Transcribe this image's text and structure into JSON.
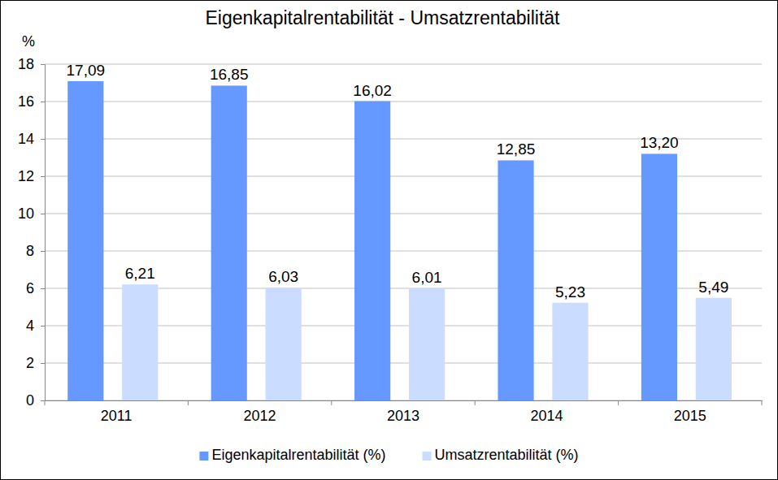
{
  "chart_data": {
    "type": "bar",
    "title": "Eigenkapitalrentabilität - Umsatzrentabilität",
    "y_label": "%",
    "categories": [
      "2011",
      "2012",
      "2013",
      "2014",
      "2015"
    ],
    "series": [
      {
        "name": "Eigenkapitalrentabilität (%)",
        "color": "#6699ff",
        "values": [
          17.09,
          16.85,
          16.02,
          12.85,
          13.2
        ],
        "value_labels": [
          "17,09",
          "16,85",
          "16,02",
          "12,85",
          "13,20"
        ]
      },
      {
        "name": "Umsatzrentabilität (%)",
        "color": "#cadcff",
        "values": [
          6.21,
          6.03,
          6.01,
          5.23,
          5.49
        ],
        "value_labels": [
          "6,21",
          "6,03",
          "6,01",
          "5,23",
          "5,49"
        ]
      }
    ],
    "ylim": [
      0,
      18
    ],
    "yticks": [
      0,
      2,
      4,
      6,
      8,
      10,
      12,
      14,
      16,
      18
    ],
    "grid": true,
    "data_labels": true,
    "legend": "bottom"
  }
}
